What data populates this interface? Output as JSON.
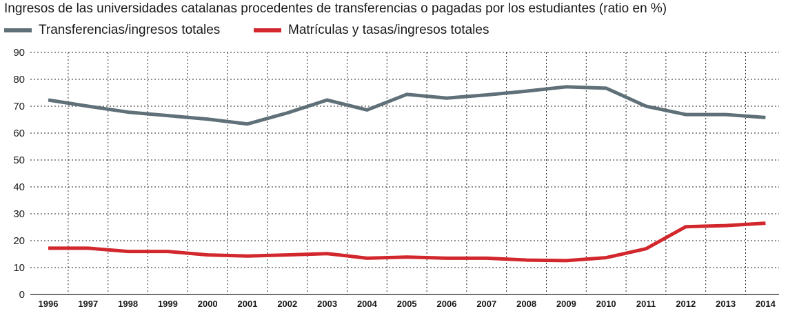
{
  "chart_data": {
    "type": "line",
    "title": "Ingresos de las universidades catalanas procedentes de transferencias o pagadas por los estudiantes (ratio en %)",
    "xlabel": "",
    "ylabel": "",
    "categories": [
      "1996",
      "1997",
      "1998",
      "1999",
      "2000",
      "2001",
      "2002",
      "2003",
      "2004",
      "2005",
      "2006",
      "2007",
      "2008",
      "2009",
      "2010",
      "2011",
      "2012",
      "2013",
      "2014"
    ],
    "yticks": [
      "0",
      "10",
      "20",
      "30",
      "40",
      "50",
      "60",
      "70",
      "80",
      "90"
    ],
    "ylim": [
      0,
      90
    ],
    "grid": true,
    "legend_position": "top-left",
    "series": [
      {
        "name": "Transferencias/ingresos totales",
        "color": "#5f7078",
        "values": [
          72.3,
          70.0,
          67.8,
          66.5,
          65.2,
          63.4,
          67.5,
          72.3,
          68.6,
          74.4,
          73.0,
          74.2,
          75.6,
          77.2,
          76.7,
          70.0,
          66.9,
          66.9,
          65.8
        ]
      },
      {
        "name": "Matrículas y tasas/ingresos totales",
        "color": "#d2272d",
        "values": [
          17.2,
          17.2,
          16.0,
          16.0,
          14.7,
          14.3,
          14.7,
          15.2,
          13.5,
          13.9,
          13.5,
          13.5,
          12.8,
          12.6,
          13.7,
          17.0,
          25.2,
          25.6,
          26.5
        ]
      }
    ]
  }
}
